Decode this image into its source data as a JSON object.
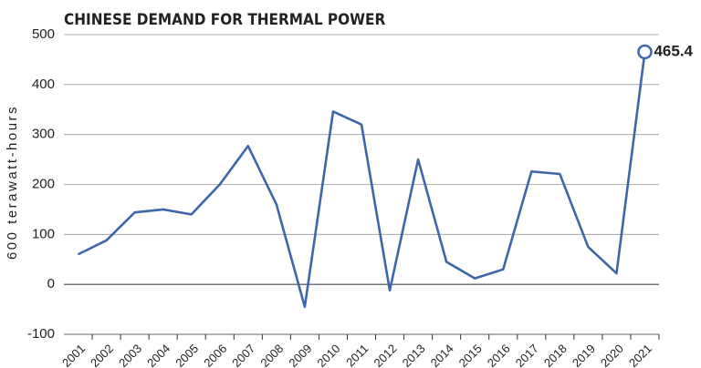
{
  "chart_data": {
    "type": "line",
    "title": "CHINESE DEMAND FOR THERMAL POWER",
    "y_label": "600 terawatt-hours",
    "categories": [
      "2001",
      "2002",
      "2003",
      "2004",
      "2005",
      "2006",
      "2007",
      "2008",
      "2009",
      "2010",
      "2011",
      "2012",
      "2013",
      "2014",
      "2015",
      "2016",
      "2017",
      "2018",
      "2019",
      "2020",
      "2021"
    ],
    "series": [
      {
        "color": "#3d67aa",
        "values": [
          60,
          88,
          144,
          150,
          140,
          200,
          277,
          160,
          -45,
          346,
          320,
          -12,
          250,
          45,
          12,
          30,
          226,
          221,
          75,
          22,
          465.4
        ]
      }
    ],
    "ylim": [
      -100,
      500
    ],
    "yticks": [
      -100,
      0,
      100,
      200,
      300,
      400,
      500
    ],
    "grid": true
  }
}
